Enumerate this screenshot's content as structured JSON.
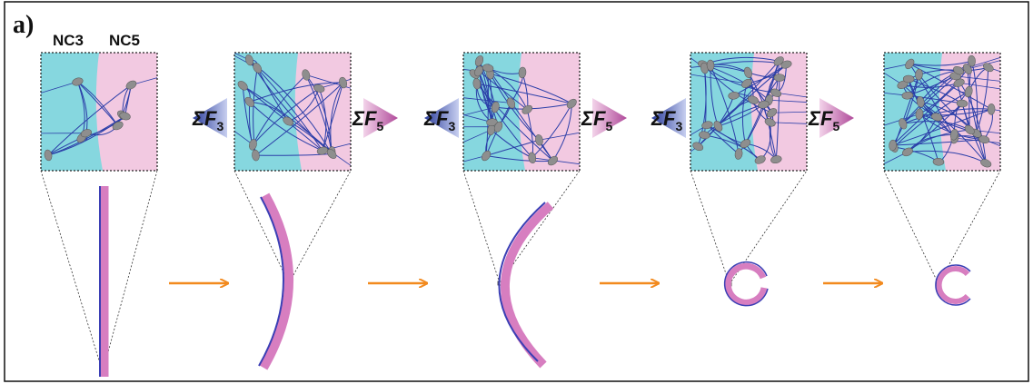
{
  "panel_label": "a)",
  "material_labels": [
    "NC3",
    "NC5"
  ],
  "forces": [
    {
      "left": {
        "base": "ΣF",
        "sub": "3"
      },
      "right": {
        "base": "ΣF",
        "sub": "5"
      }
    },
    {
      "left": {
        "base": "ΣF",
        "sub": "3"
      },
      "right": {
        "base": "ΣF",
        "sub": "5"
      }
    },
    {
      "left": {
        "base": "ΣF",
        "sub": "3"
      },
      "right": {
        "base": "ΣF",
        "sub": "5"
      }
    }
  ]
}
